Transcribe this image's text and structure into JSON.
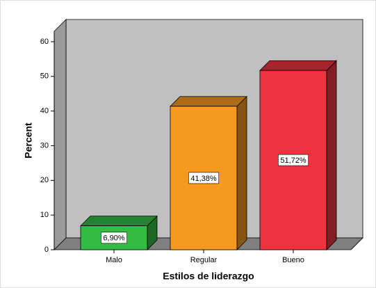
{
  "chart_data": {
    "type": "bar3d",
    "x_label": "Estilos de liderazgo",
    "y_label": "Percent",
    "categories": [
      "Malo",
      "Regular",
      "Bueno"
    ],
    "values": [
      6.9,
      41.38,
      51.72
    ],
    "value_labels": [
      "6,90%",
      "41,38%",
      "51,72%"
    ],
    "colors": [
      "#33bb44",
      "#f7991f",
      "#ee3340"
    ],
    "ylim": [
      0,
      63
    ],
    "yticks": [
      0,
      10,
      20,
      30,
      40,
      50,
      60
    ]
  }
}
